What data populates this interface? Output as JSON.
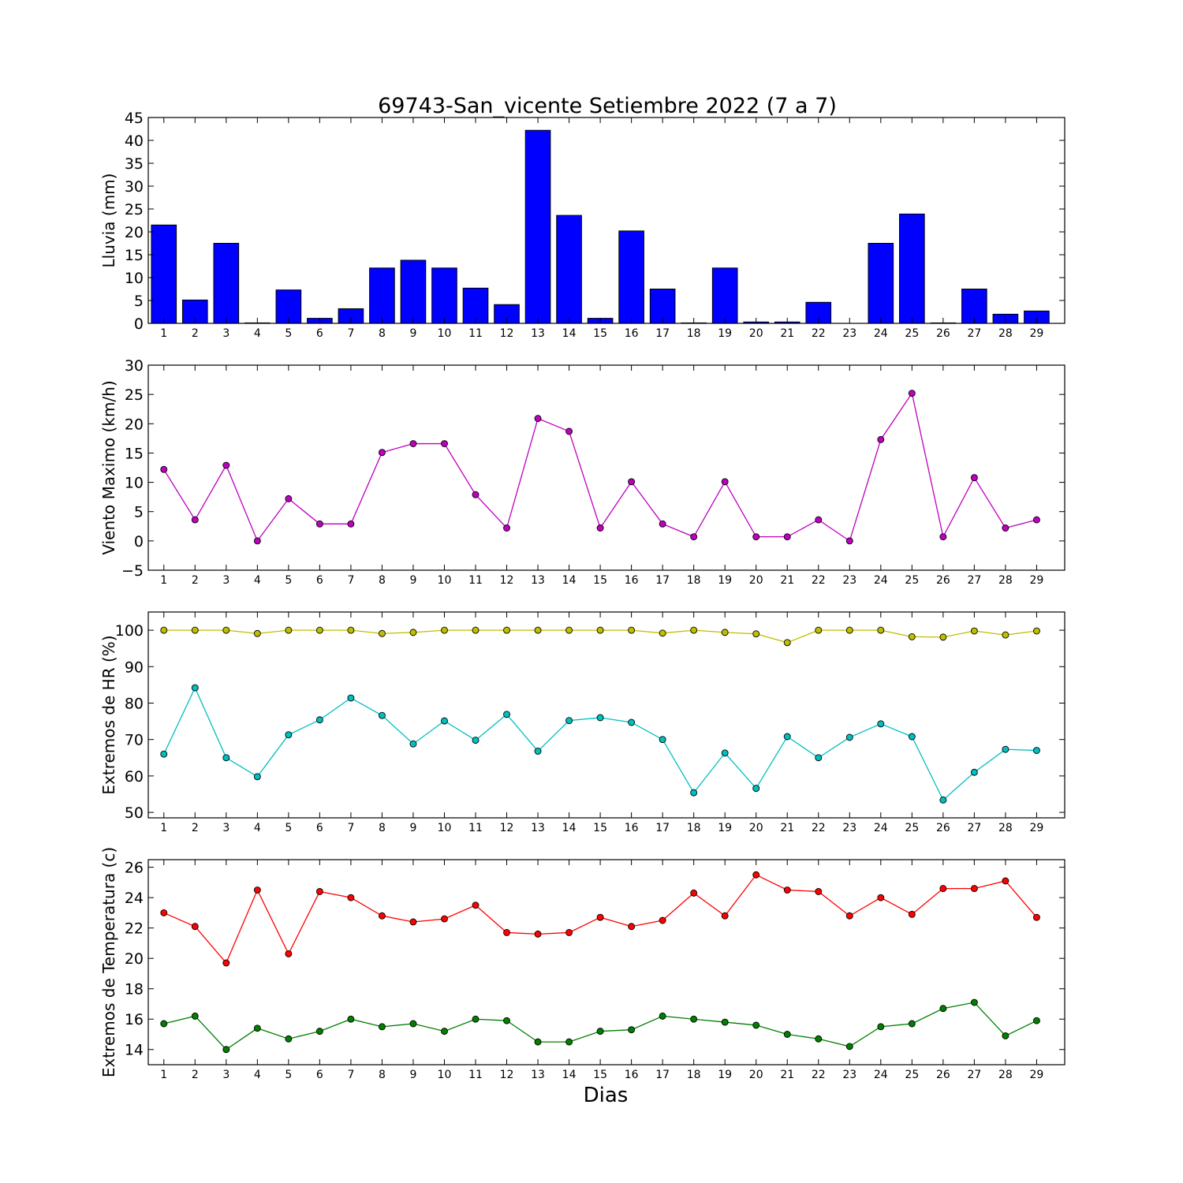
{
  "title": "69743-San_vicente Setiembre 2022  (7 a 7)",
  "xlabel": "Dias",
  "chart_data": [
    {
      "type": "bar",
      "ylabel": "Lluvia (mm)",
      "ylim": [
        0,
        45
      ],
      "yticks": [
        0,
        5,
        10,
        15,
        20,
        25,
        30,
        35,
        40,
        45
      ],
      "x": [
        1,
        2,
        3,
        4,
        5,
        6,
        7,
        8,
        9,
        10,
        11,
        12,
        13,
        14,
        15,
        16,
        17,
        18,
        19,
        20,
        21,
        22,
        23,
        24,
        25,
        26,
        27,
        28,
        29
      ],
      "series": [
        {
          "values": [
            21.5,
            5.1,
            17.5,
            0.1,
            7.3,
            1.1,
            3.2,
            12.1,
            13.8,
            12.1,
            7.7,
            4.1,
            42.2,
            23.6,
            1.1,
            20.2,
            7.5,
            0.1,
            12.1,
            0.3,
            0.3,
            4.6,
            0,
            17.5,
            23.9,
            0.1,
            7.5,
            2.0,
            2.7
          ],
          "color": "#0000ff"
        }
      ]
    },
    {
      "type": "line",
      "ylabel": "Viento Maximo (km/h)",
      "ylim": [
        -5,
        30
      ],
      "yticks": [
        -5,
        0,
        5,
        10,
        15,
        20,
        25,
        30
      ],
      "ytick_labels": [
        "−5",
        "0",
        "5",
        "10",
        "15",
        "20",
        "25",
        "30"
      ],
      "x": [
        1,
        2,
        3,
        4,
        5,
        6,
        7,
        8,
        9,
        10,
        11,
        12,
        13,
        14,
        15,
        16,
        17,
        18,
        19,
        20,
        21,
        22,
        23,
        24,
        25,
        26,
        27,
        28,
        29
      ],
      "series": [
        {
          "values": [
            12.2,
            3.6,
            12.9,
            0,
            7.2,
            2.9,
            2.9,
            15.1,
            16.6,
            16.6,
            7.9,
            2.2,
            20.9,
            18.7,
            2.2,
            10.1,
            2.9,
            0.7,
            10.1,
            0.7,
            0.7,
            3.6,
            0,
            17.3,
            25.2,
            0.7,
            10.8,
            2.2,
            3.6
          ],
          "color": "#bf00bf"
        }
      ]
    },
    {
      "type": "line",
      "ylabel": "Extremos de HR (%)",
      "ylim": [
        48.5,
        105
      ],
      "yticks": [
        50,
        60,
        70,
        80,
        90,
        100
      ],
      "x": [
        1,
        2,
        3,
        4,
        5,
        6,
        7,
        8,
        9,
        10,
        11,
        12,
        13,
        14,
        15,
        16,
        17,
        18,
        19,
        20,
        21,
        22,
        23,
        24,
        25,
        26,
        27,
        28,
        29
      ],
      "series": [
        {
          "values": [
            100,
            100,
            100,
            99.1,
            100,
            100,
            100,
            99.1,
            99.4,
            100,
            100,
            100,
            100,
            100,
            100,
            100,
            99.2,
            100,
            99.4,
            99.0,
            96.6,
            100,
            100,
            100,
            98.2,
            98.1,
            99.8,
            98.7,
            99.8
          ],
          "color": "#bfbf00"
        },
        {
          "values": [
            66,
            84.2,
            65,
            59.8,
            71.3,
            75.4,
            81.4,
            76.6,
            68.8,
            75.1,
            69.8,
            76.9,
            66.8,
            75.2,
            76,
            74.7,
            70,
            55.4,
            66.3,
            56.6,
            70.8,
            65,
            70.6,
            74.3,
            70.8,
            53.4,
            61,
            67.3,
            67
          ]
        }
      ]
    },
    {
      "type": "line",
      "ylabel": "Extremos de Temperatura (c)",
      "ylim": [
        13,
        26.5
      ],
      "yticks": [
        14,
        16,
        18,
        20,
        22,
        24,
        26
      ],
      "x": [
        1,
        2,
        3,
        4,
        5,
        6,
        7,
        8,
        9,
        10,
        11,
        12,
        13,
        14,
        15,
        16,
        17,
        18,
        19,
        20,
        21,
        22,
        23,
        24,
        25,
        26,
        27,
        28,
        29
      ],
      "series": [
        {
          "values": [
            23.0,
            22.1,
            19.7,
            24.5,
            20.3,
            24.4,
            24.0,
            22.8,
            22.4,
            22.6,
            23.5,
            21.7,
            21.6,
            21.7,
            22.7,
            22.1,
            22.5,
            24.3,
            22.8,
            25.5,
            24.5,
            24.4,
            22.8,
            24.0,
            22.9,
            24.6,
            24.6,
            25.1,
            22.7
          ],
          "color": "#ff0000"
        },
        {
          "values": [
            15.7,
            16.2,
            14.0,
            15.4,
            14.7,
            15.2,
            16.0,
            15.5,
            15.7,
            15.2,
            16.0,
            15.9,
            14.5,
            14.5,
            15.2,
            15.3,
            16.2,
            16.0,
            15.8,
            15.6,
            15.0,
            14.7,
            14.2,
            15.5,
            15.7,
            16.7,
            17.1,
            14.9,
            15.9
          ],
          "color": "#007f00"
        }
      ]
    }
  ]
}
